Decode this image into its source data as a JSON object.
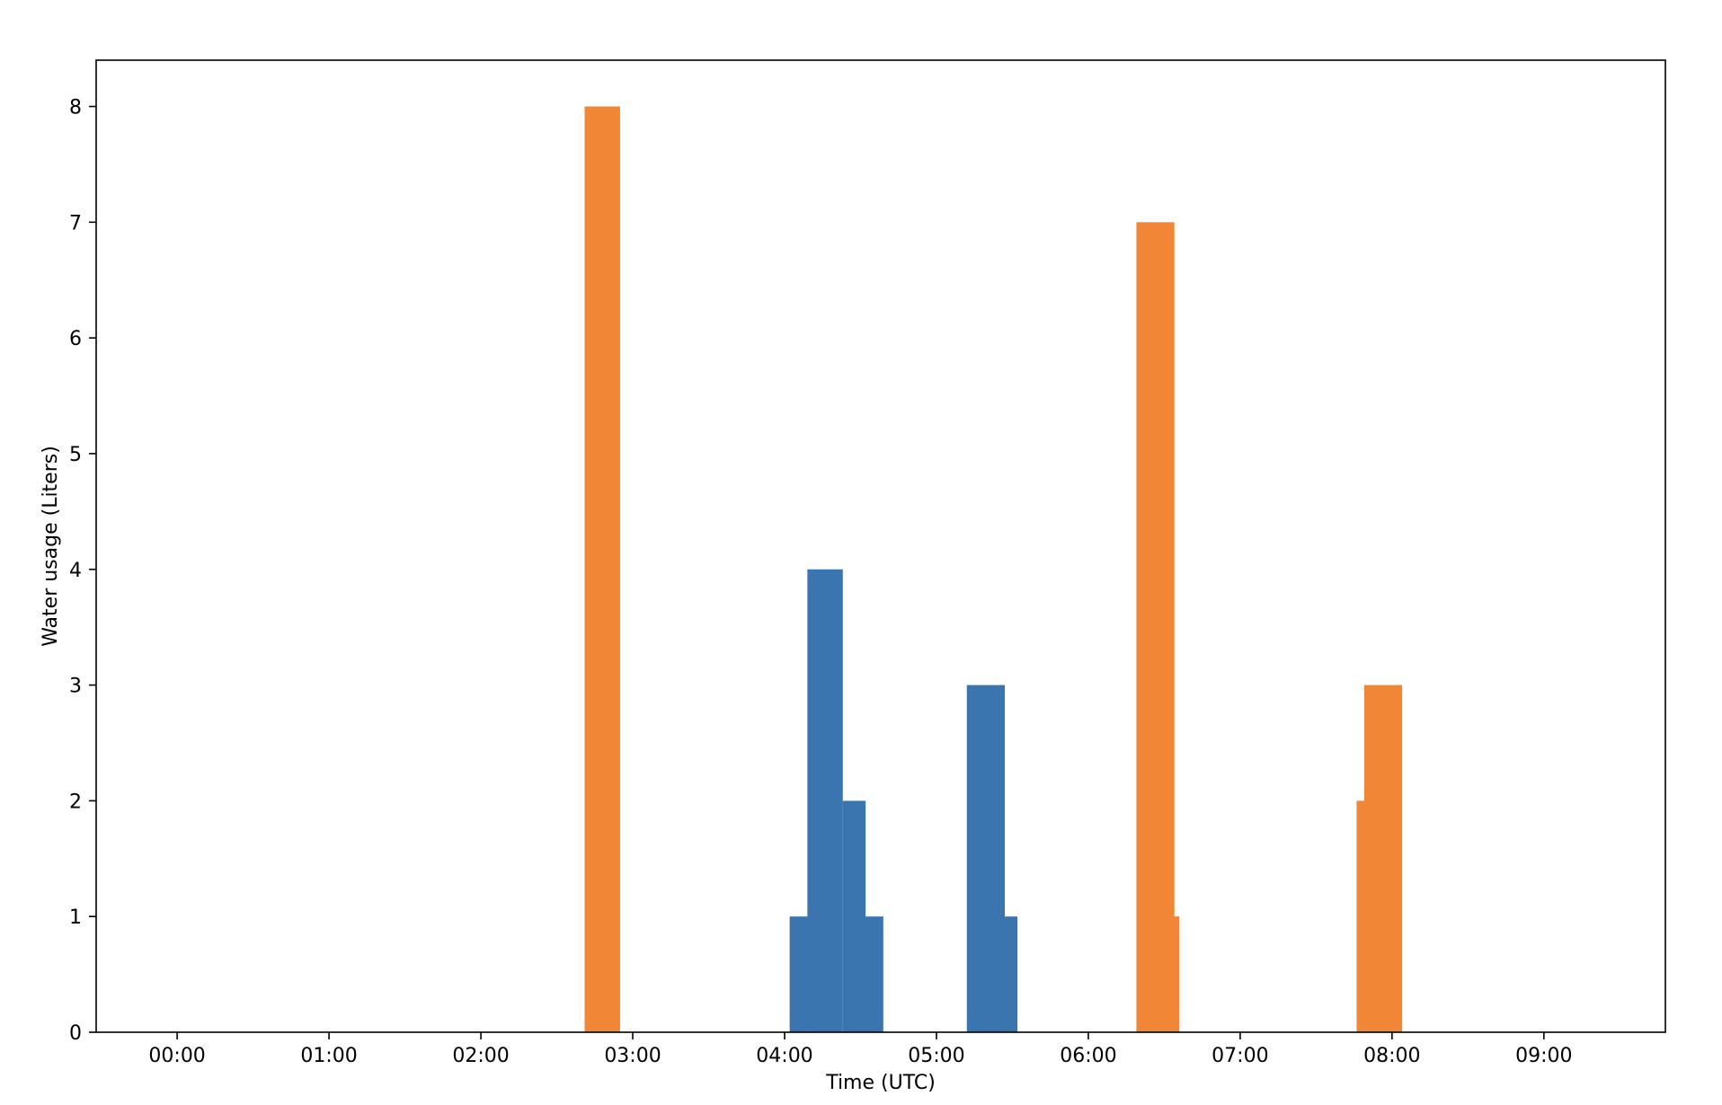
{
  "chart_data": {
    "type": "bar",
    "title": "",
    "xlabel": "Time (UTC)",
    "ylabel": "Water usage (Liters)",
    "xlim": [
      "-00:32",
      "09:48"
    ],
    "ylim": [
      0,
      8.4
    ],
    "grid": false,
    "legend": "none",
    "x_ticks": [
      "00:00",
      "01:00",
      "02:00",
      "03:00",
      "04:00",
      "05:00",
      "06:00",
      "07:00",
      "08:00",
      "09:00"
    ],
    "y_ticks": [
      "0",
      "1",
      "2",
      "3",
      "4",
      "5",
      "6",
      "7",
      "8"
    ],
    "series": [
      {
        "color": "#3a75b0",
        "bars": [
          {
            "start": "04:02",
            "end": "04:10",
            "value": 1
          },
          {
            "start": "04:09",
            "end": "04:23",
            "value": 4
          },
          {
            "start": "04:23",
            "end": "04:32",
            "value": 2
          },
          {
            "start": "04:31",
            "end": "04:39",
            "value": 1
          },
          {
            "start": "05:12",
            "end": "05:27",
            "value": 3
          },
          {
            "start": "05:26",
            "end": "05:32",
            "value": 1
          }
        ]
      },
      {
        "color": "#f08636",
        "bars": [
          {
            "start": "02:41",
            "end": "02:55",
            "value": 8
          },
          {
            "start": "06:19",
            "end": "06:34",
            "value": 7
          },
          {
            "start": "06:33",
            "end": "06:36",
            "value": 1
          },
          {
            "start": "07:46",
            "end": "07:50",
            "value": 2
          },
          {
            "start": "07:49",
            "end": "08:04",
            "value": 3
          }
        ]
      }
    ]
  }
}
